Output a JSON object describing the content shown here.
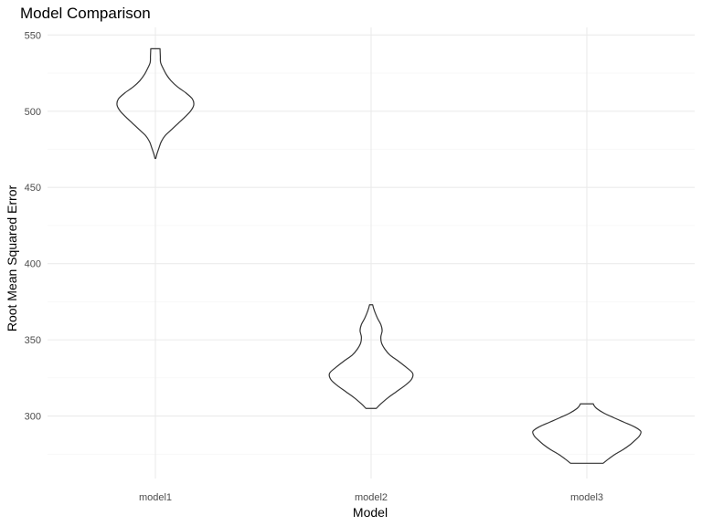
{
  "chart_data": {
    "type": "violin",
    "title": "Model Comparison",
    "xlabel": "Model",
    "ylabel": "Root Mean Squared Error",
    "categories": [
      "model1",
      "model2",
      "model3"
    ],
    "ylim": [
      259,
      555
    ],
    "yticks": [
      300,
      350,
      400,
      450,
      500,
      550
    ],
    "grid": true,
    "series": [
      {
        "category": "model1",
        "min": 469,
        "max": 541,
        "profile": [
          [
            469,
            0.03
          ],
          [
            472,
            0.12
          ],
          [
            476,
            0.28
          ],
          [
            480,
            0.45
          ],
          [
            484,
            0.75
          ],
          [
            488,
            1.25
          ],
          [
            492,
            1.75
          ],
          [
            496,
            2.25
          ],
          [
            500,
            2.7
          ],
          [
            504,
            2.95
          ],
          [
            508,
            2.85
          ],
          [
            512,
            2.35
          ],
          [
            516,
            1.7
          ],
          [
            520,
            1.2
          ],
          [
            524,
            0.85
          ],
          [
            528,
            0.6
          ],
          [
            532,
            0.4
          ],
          [
            536,
            0.38
          ],
          [
            540,
            0.36
          ],
          [
            541,
            0.36
          ]
        ]
      },
      {
        "category": "model2",
        "min": 305,
        "max": 373,
        "profile": [
          [
            305,
            0.4
          ],
          [
            308,
            0.75
          ],
          [
            312,
            1.3
          ],
          [
            316,
            1.95
          ],
          [
            320,
            2.6
          ],
          [
            324,
            3.1
          ],
          [
            328,
            3.2
          ],
          [
            332,
            2.7
          ],
          [
            336,
            2.1
          ],
          [
            340,
            1.45
          ],
          [
            344,
            1.05
          ],
          [
            348,
            0.8
          ],
          [
            352,
            0.75
          ],
          [
            356,
            0.85
          ],
          [
            360,
            0.75
          ],
          [
            364,
            0.5
          ],
          [
            368,
            0.3
          ],
          [
            371,
            0.18
          ],
          [
            373,
            0.12
          ]
        ]
      },
      {
        "category": "model3",
        "min": 269,
        "max": 308,
        "profile": [
          [
            269,
            1.25
          ],
          [
            272,
            1.7
          ],
          [
            275,
            2.2
          ],
          [
            278,
            2.8
          ],
          [
            281,
            3.3
          ],
          [
            284,
            3.7
          ],
          [
            287,
            4.05
          ],
          [
            290,
            4.15
          ],
          [
            293,
            3.65
          ],
          [
            296,
            2.85
          ],
          [
            299,
            2.05
          ],
          [
            302,
            1.3
          ],
          [
            305,
            0.75
          ],
          [
            307,
            0.55
          ],
          [
            308,
            0.5
          ]
        ]
      }
    ]
  }
}
